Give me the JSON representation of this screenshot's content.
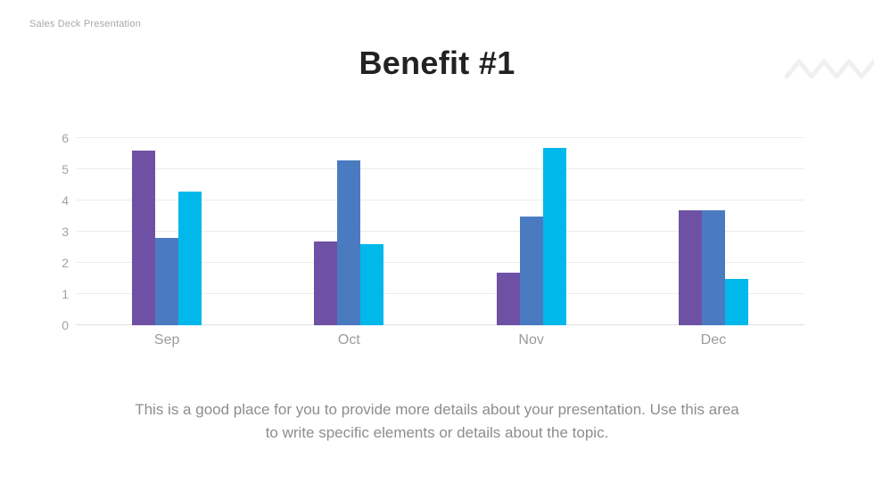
{
  "header": {
    "deck_label": "Sales Deck Presentation"
  },
  "title": "Benefit #1",
  "chart_data": {
    "type": "bar",
    "categories": [
      "Sep",
      "Oct",
      "Nov",
      "Dec"
    ],
    "series": [
      {
        "name": "purple",
        "color": "#6e51a5",
        "values": [
          5.6,
          2.7,
          1.7,
          3.7
        ]
      },
      {
        "name": "blue",
        "color": "#4a7bc1",
        "values": [
          2.8,
          5.3,
          3.5,
          3.7
        ]
      },
      {
        "name": "cyan",
        "color": "#00b8ea",
        "values": [
          4.3,
          2.6,
          5.7,
          1.5
        ]
      }
    ],
    "title": "",
    "xlabel": "",
    "ylabel": "",
    "ylim": [
      0,
      6
    ],
    "yticks": [
      0,
      1,
      2,
      3,
      4,
      5,
      6
    ],
    "grid": true,
    "legend": false
  },
  "description": {
    "lines": [
      "This is a good place for you to provide more details about your presentation. Use this area",
      "to write specific elements or details about the topic."
    ]
  },
  "decorations": {
    "zigzag_color": "#f0f0f0"
  },
  "colors": {
    "title_text": "#222222",
    "muted_text": "#8d8d8d",
    "axis_text": "#a3a3a3",
    "gridline": "#ececec",
    "background": "#ffffff"
  }
}
